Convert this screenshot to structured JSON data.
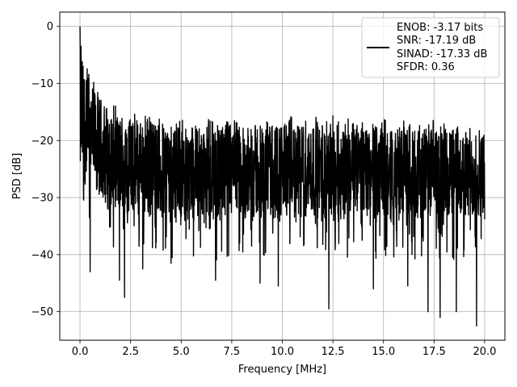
{
  "chart_data": {
    "type": "line",
    "title": "",
    "xlabel": "Frequency [MHz]",
    "ylabel": "PSD [dB]",
    "xlim": [
      -1.0,
      21.0
    ],
    "ylim": [
      -55,
      2.5
    ],
    "xticks": [
      0.0,
      2.5,
      5.0,
      7.5,
      10.0,
      12.5,
      15.0,
      17.5,
      20.0
    ],
    "xtick_labels": [
      "0.0",
      "2.5",
      "5.0",
      "7.5",
      "10.0",
      "12.5",
      "15.0",
      "17.5",
      "20.0"
    ],
    "yticks": [
      0,
      -10,
      -20,
      -30,
      -40,
      -50
    ],
    "ytick_labels": [
      "0",
      "−10",
      "−20",
      "−30",
      "−40",
      "−50"
    ],
    "grid": true,
    "legend_position": "top-right",
    "series": [
      {
        "name": "",
        "color": "#000000",
        "x_start": 0.0,
        "x_end": 20.0,
        "band_lower": [
          -28,
          -32,
          -34,
          -35,
          -35,
          -35,
          -35,
          -35,
          -35,
          -35,
          -35,
          -35,
          -35,
          -35,
          -35,
          -35,
          -35,
          -35,
          -35,
          -35,
          -35
        ],
        "band_upper": [
          -3,
          -12,
          -14,
          -15,
          -15,
          -15.5,
          -15.5,
          -15.5,
          -16,
          -15.5,
          -15.5,
          -15.5,
          -15.5,
          -15.5,
          -16,
          -16,
          -16,
          -16,
          -16,
          -17,
          -17
        ],
        "peaks": [
          {
            "x": 0.0,
            "y": 0.0
          },
          {
            "x": 0.05,
            "y": -3.5
          },
          {
            "x": 0.15,
            "y": -7.0
          },
          {
            "x": 0.3,
            "y": -9.5
          },
          {
            "x": 0.5,
            "y": -10.5
          }
        ],
        "dips": [
          {
            "x": 0.5,
            "y": -43.0
          },
          {
            "x": 1.95,
            "y": -44.5
          },
          {
            "x": 2.2,
            "y": -47.5
          },
          {
            "x": 3.1,
            "y": -42.5
          },
          {
            "x": 4.5,
            "y": -41.5
          },
          {
            "x": 6.7,
            "y": -44.5
          },
          {
            "x": 8.9,
            "y": -45.0
          },
          {
            "x": 9.8,
            "y": -45.5
          },
          {
            "x": 12.3,
            "y": -49.5
          },
          {
            "x": 14.5,
            "y": -46.0
          },
          {
            "x": 16.2,
            "y": -45.5
          },
          {
            "x": 17.2,
            "y": -50.0
          },
          {
            "x": 17.8,
            "y": -51.0
          },
          {
            "x": 18.6,
            "y": -50.0
          },
          {
            "x": 19.6,
            "y": -52.5
          }
        ]
      }
    ],
    "legend": {
      "lines": [
        "ENOB: -3.17 bits",
        "SNR: -17.19 dB",
        "SINAD: -17.33 dB",
        "SFDR: 0.36"
      ]
    }
  }
}
